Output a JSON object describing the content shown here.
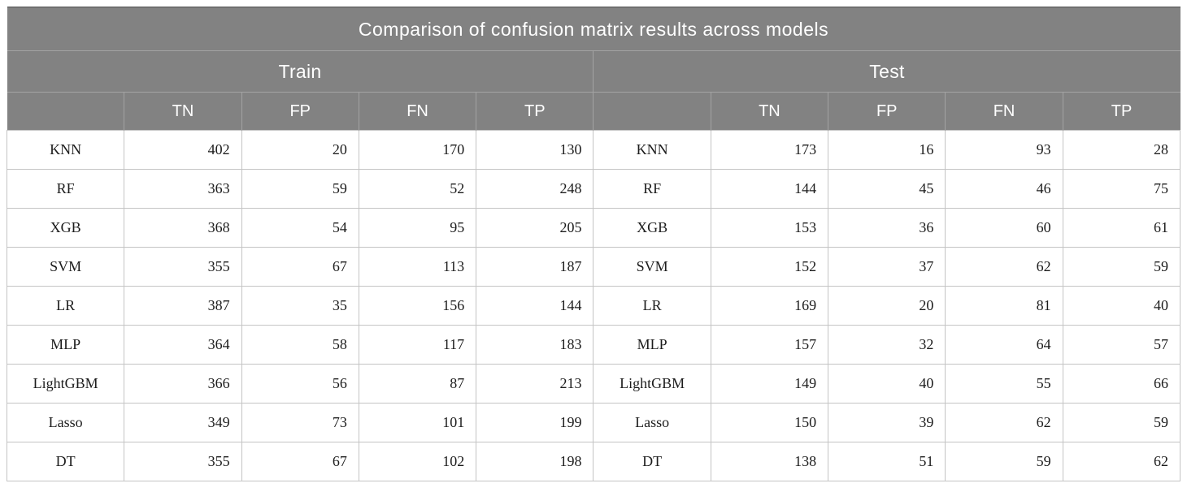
{
  "chart_data": {
    "type": "table",
    "title": "Comparison of confusion matrix results across models",
    "section_labels": [
      "Train",
      "Test"
    ],
    "metric_columns": [
      "TN",
      "FP",
      "FN",
      "TP"
    ],
    "rows": [
      {
        "model": "KNN",
        "train": [
          402,
          20,
          170,
          130
        ],
        "test": [
          173,
          16,
          93,
          28
        ]
      },
      {
        "model": "RF",
        "train": [
          363,
          59,
          52,
          248
        ],
        "test": [
          144,
          45,
          46,
          75
        ]
      },
      {
        "model": "XGB",
        "train": [
          368,
          54,
          95,
          205
        ],
        "test": [
          153,
          36,
          60,
          61
        ]
      },
      {
        "model": "SVM",
        "train": [
          355,
          67,
          113,
          187
        ],
        "test": [
          152,
          37,
          62,
          59
        ]
      },
      {
        "model": "LR",
        "train": [
          387,
          35,
          156,
          144
        ],
        "test": [
          169,
          20,
          81,
          40
        ]
      },
      {
        "model": "MLP",
        "train": [
          364,
          58,
          117,
          183
        ],
        "test": [
          157,
          32,
          64,
          57
        ]
      },
      {
        "model": "LightGBM",
        "train": [
          366,
          56,
          87,
          213
        ],
        "test": [
          149,
          40,
          55,
          66
        ]
      },
      {
        "model": "Lasso",
        "train": [
          349,
          73,
          101,
          199
        ],
        "test": [
          150,
          39,
          62,
          59
        ]
      },
      {
        "model": "DT",
        "train": [
          355,
          67,
          102,
          198
        ],
        "test": [
          138,
          51,
          59,
          62
        ]
      }
    ],
    "layout": {
      "legend_position": "none",
      "grid": true
    }
  },
  "colors": {
    "header_bg": "#828282",
    "header_text": "#ffffff",
    "header_divider": "#a3a3a3",
    "body_text": "#1c1c1c",
    "grid_line": "#c4c4c4",
    "page_bg": "#ffffff"
  }
}
